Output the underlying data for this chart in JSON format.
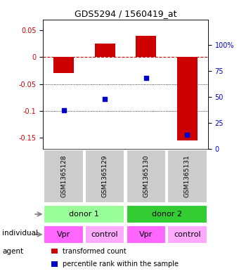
{
  "title": "GDS5294 / 1560419_at",
  "bar_values": [
    -0.03,
    0.025,
    0.04,
    -0.155
  ],
  "percentile_values": [
    0.37,
    0.48,
    0.68,
    0.13
  ],
  "categories": [
    "GSM1365128",
    "GSM1365129",
    "GSM1365130",
    "GSM1365131"
  ],
  "ylim_left": [
    -0.17,
    0.07
  ],
  "ylim_right": [
    0,
    1.25
  ],
  "bar_color": "#cc0000",
  "dot_color": "#0000cc",
  "zero_line_color": "#cc0000",
  "grid_color": "#000000",
  "individual_labels": [
    "donor 1",
    "donor 2"
  ],
  "individual_colors": [
    "#99ff99",
    "#33cc33"
  ],
  "agent_labels": [
    "Vpr",
    "control",
    "Vpr",
    "control"
  ],
  "agent_color": "#ff66ff",
  "gsm_bg_color": "#cccccc",
  "legend_bar_label": "transformed count",
  "legend_dot_label": "percentile rank within the sample",
  "right_yticks": [
    0,
    0.25,
    0.5,
    0.75,
    1.0
  ],
  "right_yticklabels": [
    "0",
    "25",
    "50",
    "75",
    "100%"
  ],
  "left_yticks": [
    0.05,
    0.0,
    -0.05,
    -0.1,
    -0.15
  ],
  "left_yticklabels": [
    "0.05",
    "0",
    "-0.05",
    "-0.1",
    "-0.15"
  ]
}
